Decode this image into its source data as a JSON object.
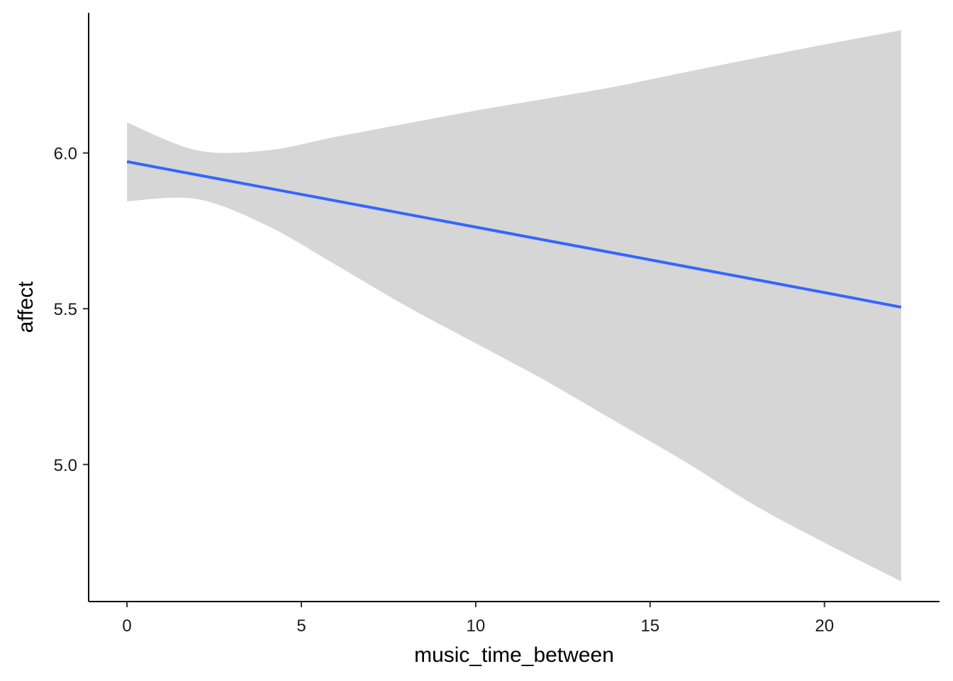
{
  "chart_data": {
    "type": "line",
    "title": "",
    "xlabel": "music_time_between",
    "ylabel": "affect",
    "xlim": [
      -1.1,
      23.3
    ],
    "ylim": [
      4.56,
      6.45
    ],
    "x_ticks": [
      0,
      5,
      10,
      15,
      20
    ],
    "x_tick_labels": [
      "0",
      "5",
      "10",
      "15",
      "20"
    ],
    "y_ticks": [
      5.0,
      5.5,
      6.0
    ],
    "y_tick_labels": [
      "5.0",
      "5.5",
      "6.0"
    ],
    "grid": false,
    "legend": "none",
    "series": [
      {
        "x": [
          0,
          2,
          4,
          6,
          8,
          10,
          12,
          14,
          16,
          18,
          20,
          22.2
        ],
        "y": [
          5.972,
          5.93,
          5.888,
          5.846,
          5.804,
          5.762,
          5.72,
          5.678,
          5.636,
          5.594,
          5.552,
          5.505
        ],
        "ymin": [
          5.845,
          5.852,
          5.768,
          5.64,
          5.509,
          5.389,
          5.269,
          5.139,
          5.009,
          4.869,
          4.749,
          4.625
        ],
        "ymax": [
          6.098,
          6.009,
          6.008,
          6.052,
          6.094,
          6.136,
          6.174,
          6.213,
          6.259,
          6.304,
          6.348,
          6.394
        ]
      }
    ],
    "line_color": "#3366FF",
    "ribbon_color": "#D6D6D6"
  }
}
